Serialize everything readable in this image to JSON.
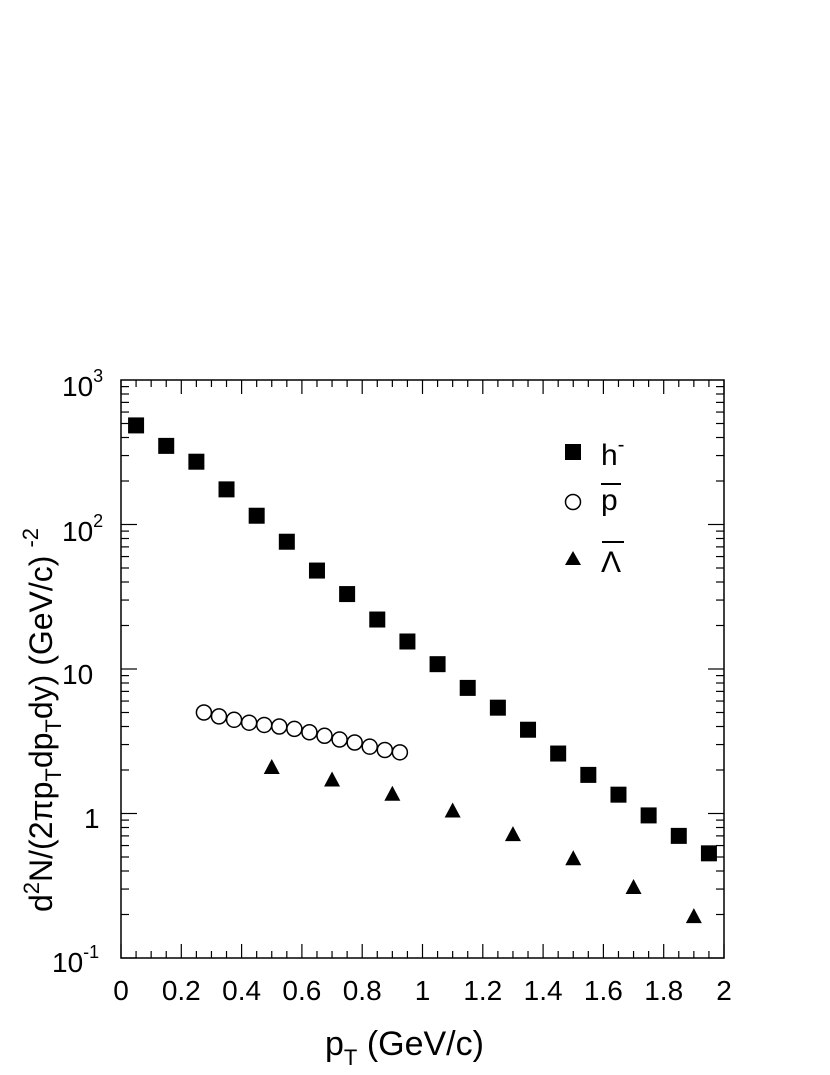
{
  "chart_data": {
    "type": "scatter",
    "xlabel": "p",
    "xlabel_sub": "T",
    "xlabel_unit": " (GeV/c)",
    "ylabel": "d²N/(2πp_T dp_T dy) (GeV/c)^-2",
    "ylabel_parts": {
      "a": "d",
      "b": "2",
      "c": "N/(2πp",
      "d": "T",
      "e": "dp",
      "f": "T",
      "g": "dy) (GeV/c)",
      "h": "-2"
    },
    "xlim": [
      0,
      2
    ],
    "ylim": [
      0.1,
      1000
    ],
    "yscale": "log",
    "grid": false,
    "legend_position": "top-right",
    "x_ticks": [
      "0",
      "0.2",
      "0.4",
      "0.6",
      "0.8",
      "1",
      "1.2",
      "1.4",
      "1.6",
      "1.8",
      "2"
    ],
    "y_ticks": {
      "t3": {
        "base": "10",
        "exp": "3"
      },
      "t2": {
        "base": "10",
        "exp": "2"
      },
      "t1": "10",
      "t0": "1",
      "tm1": {
        "base": "10",
        "exp": "-1"
      }
    },
    "series": [
      {
        "name": "h-",
        "legend_base": "h",
        "legend_sup": "-",
        "marker": "filled-square",
        "x": [
          0.05,
          0.15,
          0.25,
          0.35,
          0.45,
          0.55,
          0.65,
          0.75,
          0.85,
          0.95,
          1.05,
          1.15,
          1.25,
          1.35,
          1.45,
          1.55,
          1.65,
          1.75,
          1.85,
          1.95
        ],
        "y": [
          485,
          350,
          272,
          175,
          115,
          76,
          48,
          33,
          22,
          15.5,
          10.8,
          7.4,
          5.4,
          3.8,
          2.6,
          1.85,
          1.35,
          0.97,
          0.7,
          0.53
        ]
      },
      {
        "name": "p̄",
        "legend_base": "p",
        "marker": "open-circle",
        "x": [
          0.275,
          0.325,
          0.375,
          0.425,
          0.475,
          0.525,
          0.575,
          0.625,
          0.675,
          0.725,
          0.775,
          0.825,
          0.875,
          0.925
        ],
        "y": [
          5.0,
          4.7,
          4.45,
          4.25,
          4.1,
          4.0,
          3.85,
          3.65,
          3.45,
          3.25,
          3.1,
          2.9,
          2.75,
          2.65
        ]
      },
      {
        "name": "Λ̄",
        "legend_base": "Λ",
        "marker": "filled-triangle",
        "x": [
          0.5,
          0.7,
          0.9,
          1.1,
          1.3,
          1.5,
          1.7,
          1.9
        ],
        "y": [
          2.1,
          1.72,
          1.37,
          1.05,
          0.72,
          0.49,
          0.31,
          0.195
        ]
      }
    ]
  }
}
